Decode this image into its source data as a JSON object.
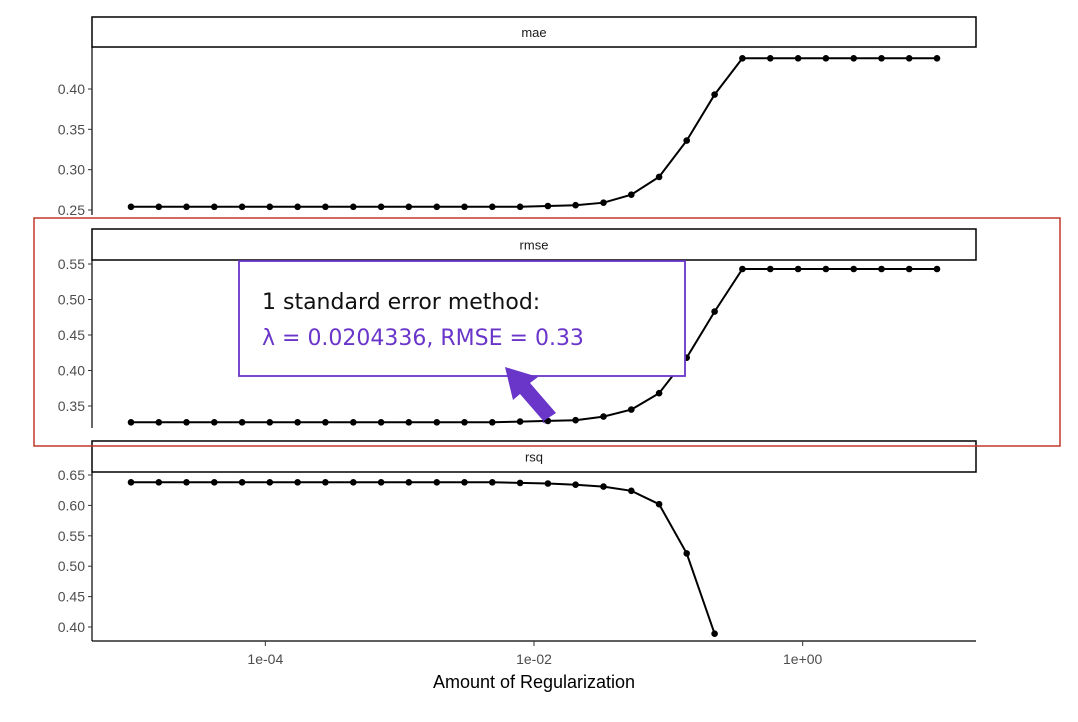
{
  "chart_data": {
    "type": "line",
    "xlabel": "Amount of Regularization",
    "x_scale": "log10",
    "x_ticks": [
      "1e-04",
      "1e-02",
      "1e+00"
    ],
    "x": [
      1e-05,
      1.61e-05,
      2.59e-05,
      4.17e-05,
      6.72e-05,
      0.000108,
      0.000174,
      0.00028,
      0.000452,
      0.000728,
      0.00117,
      0.00189,
      0.00304,
      0.00489,
      0.00788,
      0.0127,
      0.0204,
      0.0329,
      0.053,
      0.0853,
      0.137,
      0.221,
      0.356,
      0.574,
      0.924,
      1.49,
      2.4,
      3.86,
      6.21,
      10
    ],
    "panels": [
      {
        "strip": "mae",
        "ylim": [
          0.25,
          0.44
        ],
        "yticks": [
          "0.25",
          "0.30",
          "0.35",
          "0.40"
        ],
        "values": [
          0.254,
          0.254,
          0.254,
          0.254,
          0.254,
          0.254,
          0.254,
          0.254,
          0.254,
          0.254,
          0.254,
          0.254,
          0.254,
          0.254,
          0.254,
          0.255,
          0.256,
          0.259,
          0.269,
          0.291,
          0.336,
          0.393,
          0.438,
          0.438,
          0.438,
          0.438,
          0.438,
          0.438,
          0.438,
          0.438
        ]
      },
      {
        "strip": "rmse",
        "ylim": [
          0.322,
          0.555
        ],
        "yticks": [
          "0.35",
          "0.40",
          "0.45",
          "0.50",
          "0.55"
        ],
        "values": [
          0.327,
          0.327,
          0.327,
          0.327,
          0.327,
          0.327,
          0.327,
          0.327,
          0.327,
          0.327,
          0.327,
          0.327,
          0.327,
          0.327,
          0.328,
          0.329,
          0.33,
          0.335,
          0.345,
          0.368,
          0.418,
          0.483,
          0.543,
          0.543,
          0.543,
          0.543,
          0.543,
          0.543,
          0.543,
          0.543
        ]
      },
      {
        "strip": "rsq",
        "ylim": [
          0.38,
          0.655
        ],
        "yticks": [
          "0.40",
          "0.45",
          "0.50",
          "0.55",
          "0.60",
          "0.65"
        ],
        "values": [
          0.638,
          0.638,
          0.638,
          0.638,
          0.638,
          0.638,
          0.638,
          0.638,
          0.638,
          0.638,
          0.638,
          0.638,
          0.638,
          0.638,
          0.637,
          0.636,
          0.634,
          0.631,
          0.624,
          0.602,
          0.521,
          0.389
        ]
      }
    ]
  },
  "annotation": {
    "line1": "1 standard error method:",
    "line2": "λ = 0.0204336, RMSE = 0.33",
    "box_color": "#6a35c9",
    "arrow_color": "#6a35c9",
    "highlight_color": "#c0392b"
  }
}
